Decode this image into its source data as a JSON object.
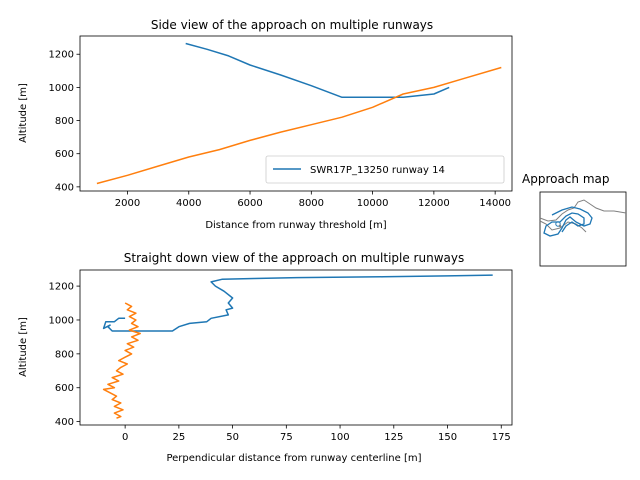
{
  "chart_data": [
    {
      "type": "line",
      "title": "Side view of the approach on multiple runways",
      "xlabel": "Distance from runway threshold [m]",
      "ylabel": "Altitude [m]",
      "xlim": [
        450,
        14550
      ],
      "ylim": [
        375,
        1310
      ],
      "xticks": [
        2000,
        4000,
        6000,
        8000,
        10000,
        12000,
        14000
      ],
      "yticks": [
        400,
        600,
        800,
        1000,
        1200
      ],
      "grid": false,
      "legend_position": "lower-right",
      "series": [
        {
          "name": "SWR17P_13250 runway 14",
          "color": "#1f77b4",
          "x": [
            3900,
            4600,
            5300,
            6000,
            7000,
            8000,
            9000,
            10000,
            11000,
            12000,
            12500
          ],
          "y": [
            1265,
            1230,
            1190,
            1135,
            1075,
            1010,
            940,
            940,
            940,
            960,
            1000
          ]
        },
        {
          "name": "",
          "color": "#ff7f0e",
          "x": [
            1000,
            2000,
            3000,
            4000,
            5000,
            6000,
            7000,
            8000,
            9000,
            10000,
            11000,
            12000,
            13000,
            14200
          ],
          "y": [
            420,
            470,
            525,
            580,
            625,
            680,
            730,
            775,
            820,
            880,
            960,
            1000,
            1055,
            1120
          ]
        }
      ]
    },
    {
      "type": "line",
      "title": "Straight down view of the approach on multiple runways",
      "xlabel": "Perpendicular distance from runway centerline [m]",
      "ylabel": "Altitude [m]",
      "xlim": [
        -21,
        180
      ],
      "ylim": [
        380,
        1295
      ],
      "xticks": [
        0,
        25,
        50,
        75,
        100,
        125,
        150,
        175
      ],
      "yticks": [
        400,
        600,
        800,
        1000,
        1200
      ],
      "grid": false,
      "series": [
        {
          "name": "",
          "color": "#1f77b4",
          "x": [
            171,
            150,
            120,
            80,
            60,
            45,
            40,
            42,
            46,
            50,
            48,
            50,
            47,
            48,
            40,
            38,
            30,
            25,
            22,
            10,
            0,
            -6,
            -8,
            -7,
            -10,
            -9,
            -5,
            -3,
            0
          ],
          "y": [
            1265,
            1260,
            1255,
            1250,
            1245,
            1240,
            1225,
            1200,
            1170,
            1130,
            1100,
            1070,
            1060,
            1030,
            1010,
            990,
            980,
            960,
            935,
            935,
            935,
            935,
            960,
            970,
            950,
            990,
            990,
            1010,
            1010
          ]
        },
        {
          "name": "",
          "color": "#ff7f0e",
          "x": [
            0,
            3,
            1,
            5,
            2,
            5,
            3,
            6,
            2,
            7,
            3,
            6,
            1,
            4,
            0,
            3,
            0,
            -3,
            1,
            -2,
            -4,
            -1,
            -6,
            -3,
            -8,
            -5,
            -10,
            -7,
            -4,
            -6,
            -2,
            -5,
            -1,
            -5,
            -2,
            -4
          ],
          "y": [
            1100,
            1080,
            1060,
            1040,
            1020,
            1000,
            980,
            960,
            940,
            920,
            900,
            880,
            860,
            840,
            820,
            800,
            780,
            760,
            740,
            720,
            700,
            680,
            660,
            640,
            620,
            600,
            590,
            570,
            550,
            530,
            510,
            490,
            470,
            450,
            430,
            420
          ]
        }
      ]
    }
  ],
  "map": {
    "title": "Approach map",
    "track_color": "#1f77b4",
    "road_color": "#808080"
  }
}
